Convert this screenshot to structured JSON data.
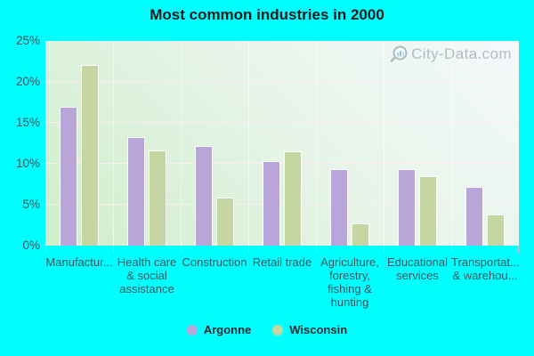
{
  "background_color": "#00ffff",
  "watermark": {
    "text": "City-Data.com"
  },
  "chart_data": {
    "type": "bar",
    "title": "Most common industries in 2000",
    "categories": [
      [
        "Manufactur..."
      ],
      [
        "Health care",
        "& social",
        "assistance"
      ],
      [
        "Construction"
      ],
      [
        "Retail trade"
      ],
      [
        "Agriculture,",
        "forestry,",
        "fishing &",
        "hunting"
      ],
      [
        "Educational",
        "services"
      ],
      [
        "Transportat...",
        "& warehou..."
      ]
    ],
    "series": [
      {
        "name": "Argonne",
        "color": "#b9a6d9",
        "values": [
          17.0,
          13.3,
          12.2,
          10.3,
          9.3,
          9.3,
          7.2
        ]
      },
      {
        "name": "Wisconsin",
        "color": "#c5d6a2",
        "values": [
          22.1,
          11.6,
          5.9,
          11.5,
          2.7,
          8.5,
          3.8
        ]
      }
    ],
    "ylabel": "",
    "xlabel": "",
    "ylim": [
      0,
      25
    ],
    "ytick_step": 5,
    "ytick_labels": [
      "0%",
      "5%",
      "10%",
      "15%",
      "20%",
      "25%"
    ],
    "grid": true,
    "legend_position": "bottom"
  }
}
